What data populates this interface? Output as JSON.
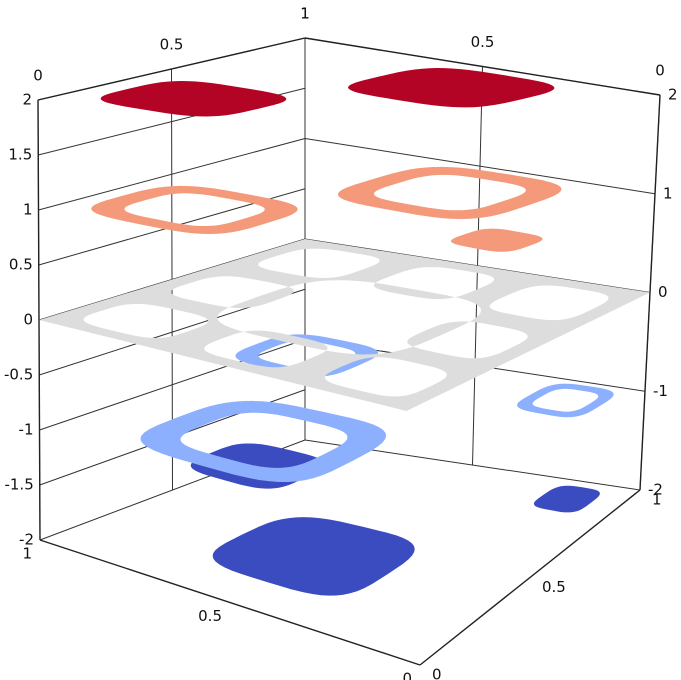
{
  "chart_data": {
    "type": "contour3d",
    "xlim": [
      0,
      1
    ],
    "xticks": [
      0,
      0.5,
      1
    ],
    "ylim": [
      0,
      1
    ],
    "yticks": [
      0,
      0.5,
      1
    ],
    "zlim": [
      -2,
      2
    ],
    "zticks": [
      -2,
      -1.5,
      -1,
      -0.5,
      0,
      0.5,
      1,
      1.5,
      2
    ],
    "z2ticks": [
      -2,
      -1,
      0,
      1,
      2
    ],
    "levels": [
      {
        "value": -2,
        "color": "#3b4cc0"
      },
      {
        "value": -1,
        "color": "#8db0fe"
      },
      {
        "value": 0,
        "color": "#dddddd"
      },
      {
        "value": 1,
        "color": "#f49a7b"
      },
      {
        "value": 2,
        "color": "#b40426"
      }
    ]
  }
}
